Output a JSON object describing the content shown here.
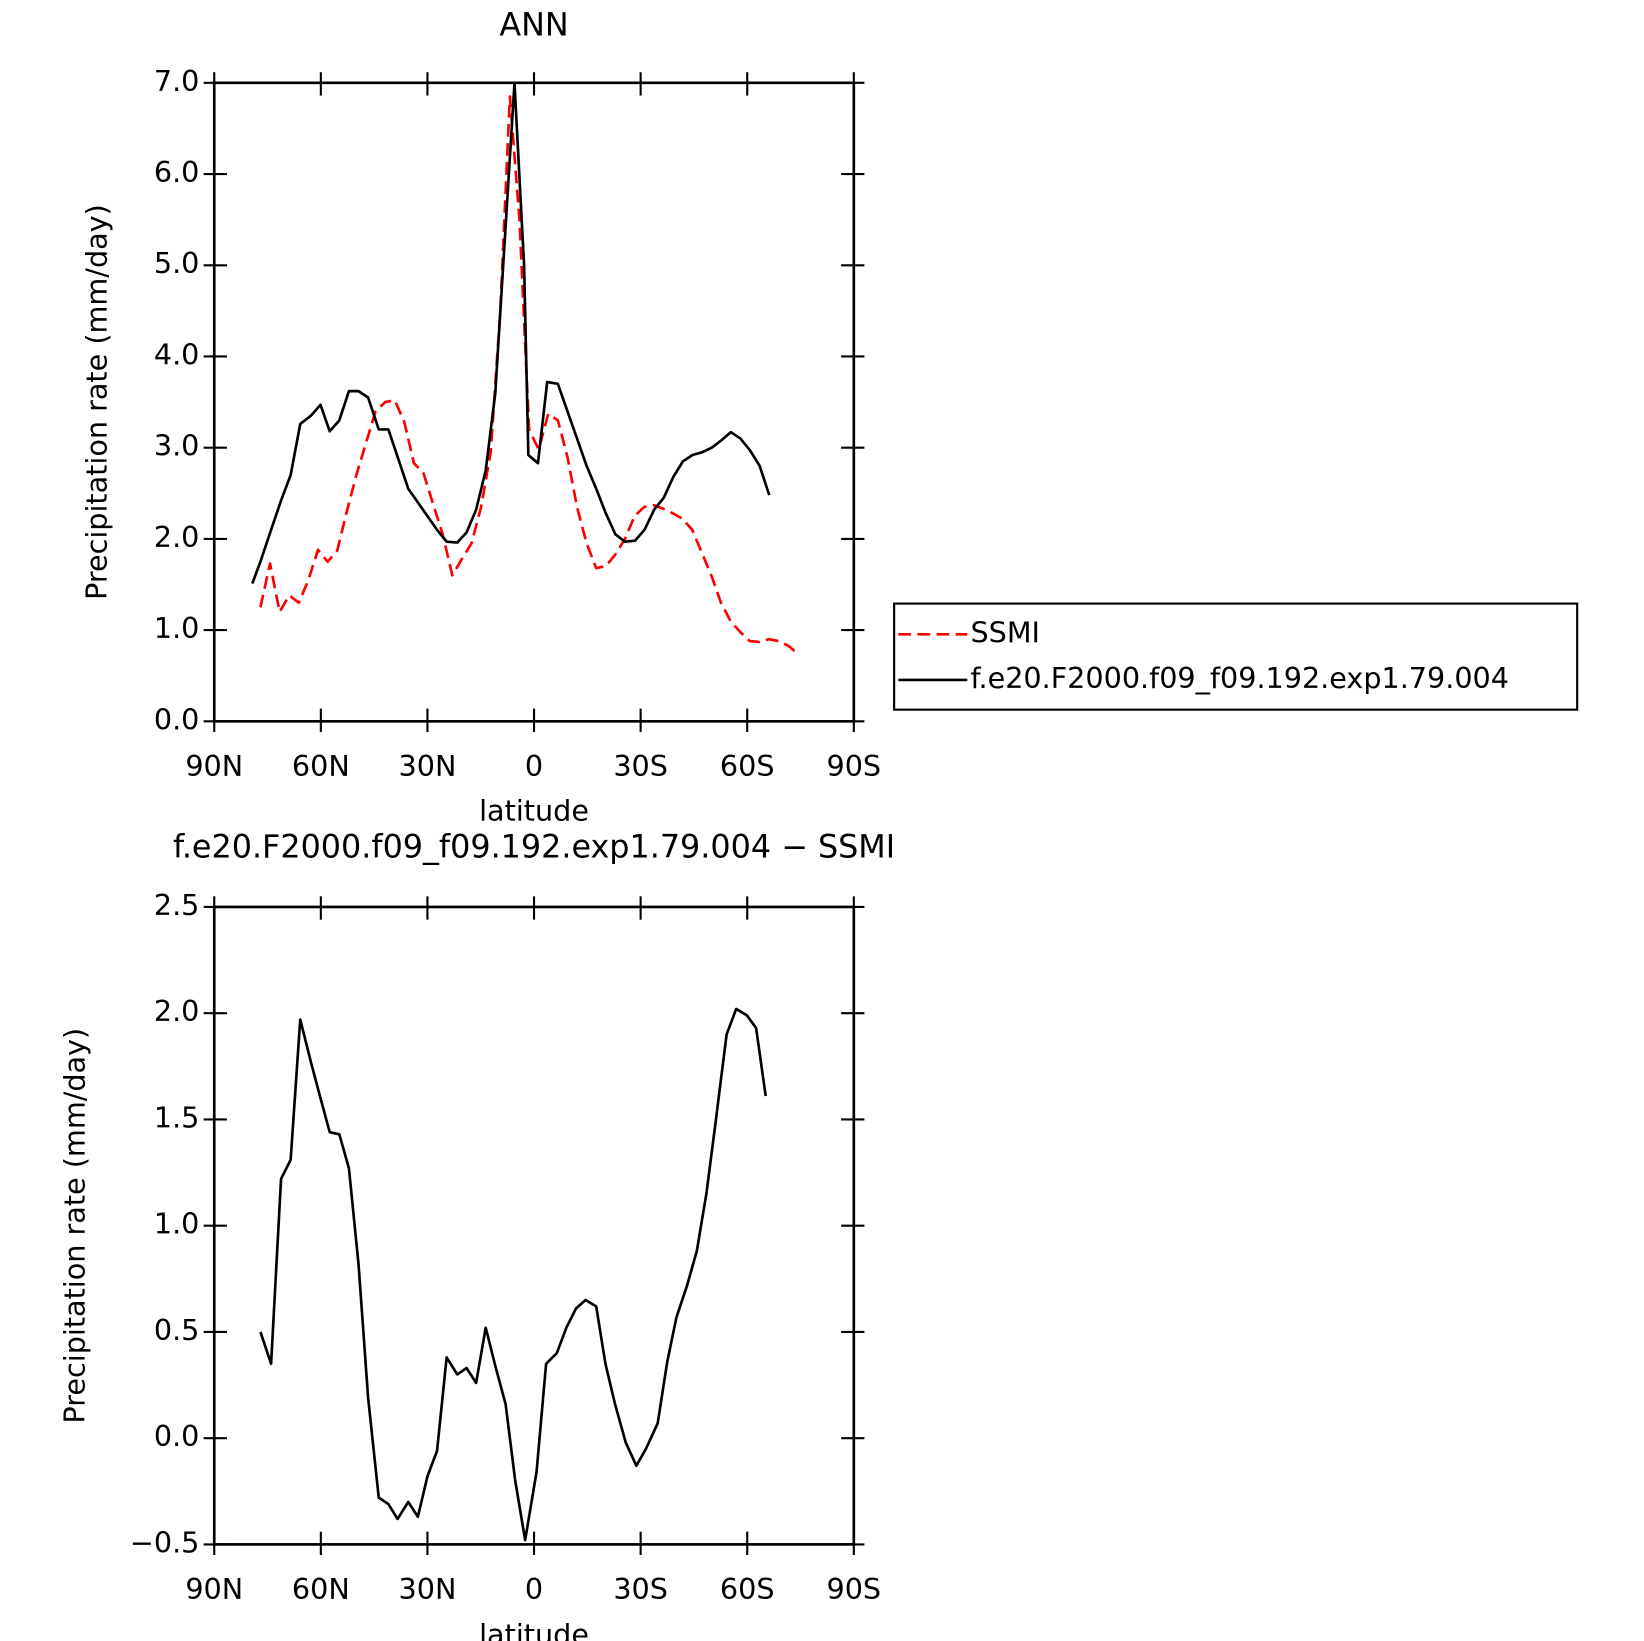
{
  "chart_data": [
    {
      "type": "line",
      "title": "ANN",
      "x_label": "latitude",
      "y_label": "Precipitation rate (mm/day)",
      "xlim": [
        90,
        -90
      ],
      "xticks": [
        {
          "value": 90,
          "label": "90N"
        },
        {
          "value": 60,
          "label": "60N"
        },
        {
          "value": 30,
          "label": "30N"
        },
        0,
        {
          "value": -30,
          "label": "30S"
        },
        {
          "value": -60,
          "label": "60S"
        },
        {
          "value": -90,
          "label": "90S"
        }
      ],
      "ylim": [
        0,
        7
      ],
      "yticks": [
        {
          "value": 0,
          "label": "0.0"
        },
        {
          "value": 1,
          "label": "1.0"
        },
        {
          "value": 2,
          "label": "2.0"
        },
        {
          "value": 3,
          "label": "3.0"
        },
        {
          "value": 4,
          "label": "4.0"
        },
        {
          "value": 5,
          "label": "5.0"
        },
        {
          "value": 6,
          "label": "6.0"
        },
        {
          "value": 7,
          "label": "7.0"
        }
      ],
      "legend": "right",
      "series": [
        {
          "name": "SSMI",
          "color": "#ff0000",
          "line_style": "dashed",
          "x": [
            77,
            74.3,
            71.6,
            68.9,
            66.2,
            63.5,
            60.8,
            58.1,
            55.4,
            52.7,
            50,
            47.3,
            44.6,
            41.9,
            39.2,
            36.5,
            33.8,
            31.1,
            28.4,
            25.7,
            23,
            20.3,
            17.6,
            14.9,
            12.2,
            9.5,
            6.8,
            4.1,
            1.4,
            -1.3,
            -4,
            -6.7,
            -9.4,
            -12.1,
            -14.8,
            -17.5,
            -20.2,
            -22.9,
            -25.6,
            -28.3,
            -31,
            -33.7,
            -36.4,
            -39.1,
            -41.8,
            -44.5,
            -47.2,
            -49.9,
            -52.6,
            -55.3,
            -58,
            -60.7,
            -63.4,
            -66.1,
            -68.8,
            -71.5,
            -74
          ],
          "values": [
            1.25,
            1.73,
            1.2,
            1.38,
            1.3,
            1.55,
            1.88,
            1.75,
            1.87,
            2.3,
            2.7,
            3.05,
            3.4,
            3.5,
            3.52,
            3.28,
            2.83,
            2.72,
            2.38,
            2.05,
            1.6,
            1.78,
            1.95,
            2.35,
            2.95,
            4.5,
            6.85,
            5.5,
            3.2,
            2.98,
            3.37,
            3.3,
            2.9,
            2.35,
            1.95,
            1.68,
            1.7,
            1.83,
            2.0,
            2.25,
            2.35,
            2.37,
            2.33,
            2.28,
            2.22,
            2.1,
            1.85,
            1.6,
            1.3,
            1.1,
            0.98,
            0.88,
            0.87,
            0.9,
            0.88,
            0.83,
            0.75
          ]
        },
        {
          "name": "f.e20.F2000.f09_f09.192.exp1.79.004",
          "color": "#000000",
          "line_style": "solid",
          "x": [
            79.3,
            77,
            74,
            71.2,
            68.5,
            65.8,
            62.8,
            60.1,
            57.5,
            54.8,
            52.1,
            49.4,
            46.7,
            43.7,
            41,
            38.4,
            35.4,
            32.7,
            30,
            27.3,
            24.6,
            21.6,
            19,
            16.3,
            13.6,
            10.9,
            8.2,
            5.5,
            2.8,
            1.6,
            -1.1,
            -3.7,
            -6.7,
            -9.4,
            -12.1,
            -14.8,
            -17.5,
            -20.2,
            -22.9,
            -25.6,
            -28.4,
            -31.1,
            -33.8,
            -36.5,
            -39.2,
            -41.9,
            -44.6,
            -47.3,
            -50,
            -52.7,
            -55.4,
            -58.1,
            -60.8,
            -63.5,
            -66.2
          ],
          "values": [
            1.51,
            1.75,
            2.1,
            2.42,
            2.7,
            3.26,
            3.35,
            3.47,
            3.18,
            3.3,
            3.62,
            3.62,
            3.55,
            3.2,
            3.2,
            2.9,
            2.55,
            2.4,
            2.25,
            2.1,
            1.97,
            1.96,
            2.07,
            2.32,
            2.75,
            3.6,
            5.3,
            7.0,
            5.0,
            2.92,
            2.83,
            3.72,
            3.7,
            3.4,
            3.1,
            2.8,
            2.55,
            2.28,
            2.05,
            1.97,
            1.98,
            2.1,
            2.32,
            2.45,
            2.68,
            2.85,
            2.92,
            2.95,
            3.0,
            3.08,
            3.17,
            3.1,
            2.97,
            2.8,
            2.48
          ]
        }
      ]
    },
    {
      "type": "line",
      "title": "f.e20.F2000.f09_f09.192.exp1.79.004 − SSMI",
      "x_label": "latitude",
      "y_label": "Precipitation rate (mm/day)",
      "xlim": [
        90,
        -90
      ],
      "xticks": [
        {
          "value": 90,
          "label": "90N"
        },
        {
          "value": 60,
          "label": "60N"
        },
        {
          "value": 30,
          "label": "30N"
        },
        0,
        {
          "value": -30,
          "label": "30S"
        },
        {
          "value": -60,
          "label": "60S"
        },
        {
          "value": -90,
          "label": "90S"
        }
      ],
      "ylim": [
        -0.5,
        2.5
      ],
      "yticks": [
        {
          "value": -0.5,
          "label": "−0.5"
        },
        {
          "value": 0,
          "label": "0.0"
        },
        0.5,
        {
          "value": 1,
          "label": "1.0"
        },
        1.5,
        {
          "value": 2,
          "label": "2.0"
        },
        2.5
      ],
      "series": [
        {
          "color": "#000000",
          "line_style": "solid",
          "x": [
            77,
            74,
            71.2,
            68.5,
            65.8,
            62.8,
            60.1,
            57.5,
            54.8,
            52.1,
            49.4,
            46.7,
            43.7,
            41,
            38.4,
            35.4,
            32.7,
            30,
            27.3,
            24.6,
            21.6,
            19,
            16.3,
            13.6,
            10.9,
            8,
            5.3,
            2.5,
            -0.7,
            -3.4,
            -6.4,
            -9.1,
            -11.8,
            -14.5,
            -17.5,
            -20.1,
            -22.8,
            -25.8,
            -28.8,
            -31.5,
            -34.8,
            -37.5,
            -40.1,
            -43.1,
            -45.8,
            -48.5,
            -51.2,
            -54.2,
            -56.9,
            -59.9,
            -62.5,
            -65.2
          ],
          "values": [
            0.5,
            0.35,
            1.22,
            1.31,
            1.97,
            1.77,
            1.6,
            1.44,
            1.43,
            1.27,
            0.82,
            0.19,
            -0.28,
            -0.31,
            -0.38,
            -0.3,
            -0.37,
            -0.18,
            -0.06,
            0.38,
            0.3,
            0.33,
            0.26,
            0.52,
            0.34,
            0.16,
            -0.2,
            -0.48,
            -0.16,
            0.35,
            0.4,
            0.52,
            0.61,
            0.65,
            0.62,
            0.35,
            0.16,
            -0.02,
            -0.13,
            -0.05,
            0.07,
            0.36,
            0.57,
            0.72,
            0.88,
            1.15,
            1.5,
            1.9,
            2.02,
            1.99,
            1.93,
            1.61
          ]
        }
      ]
    }
  ]
}
